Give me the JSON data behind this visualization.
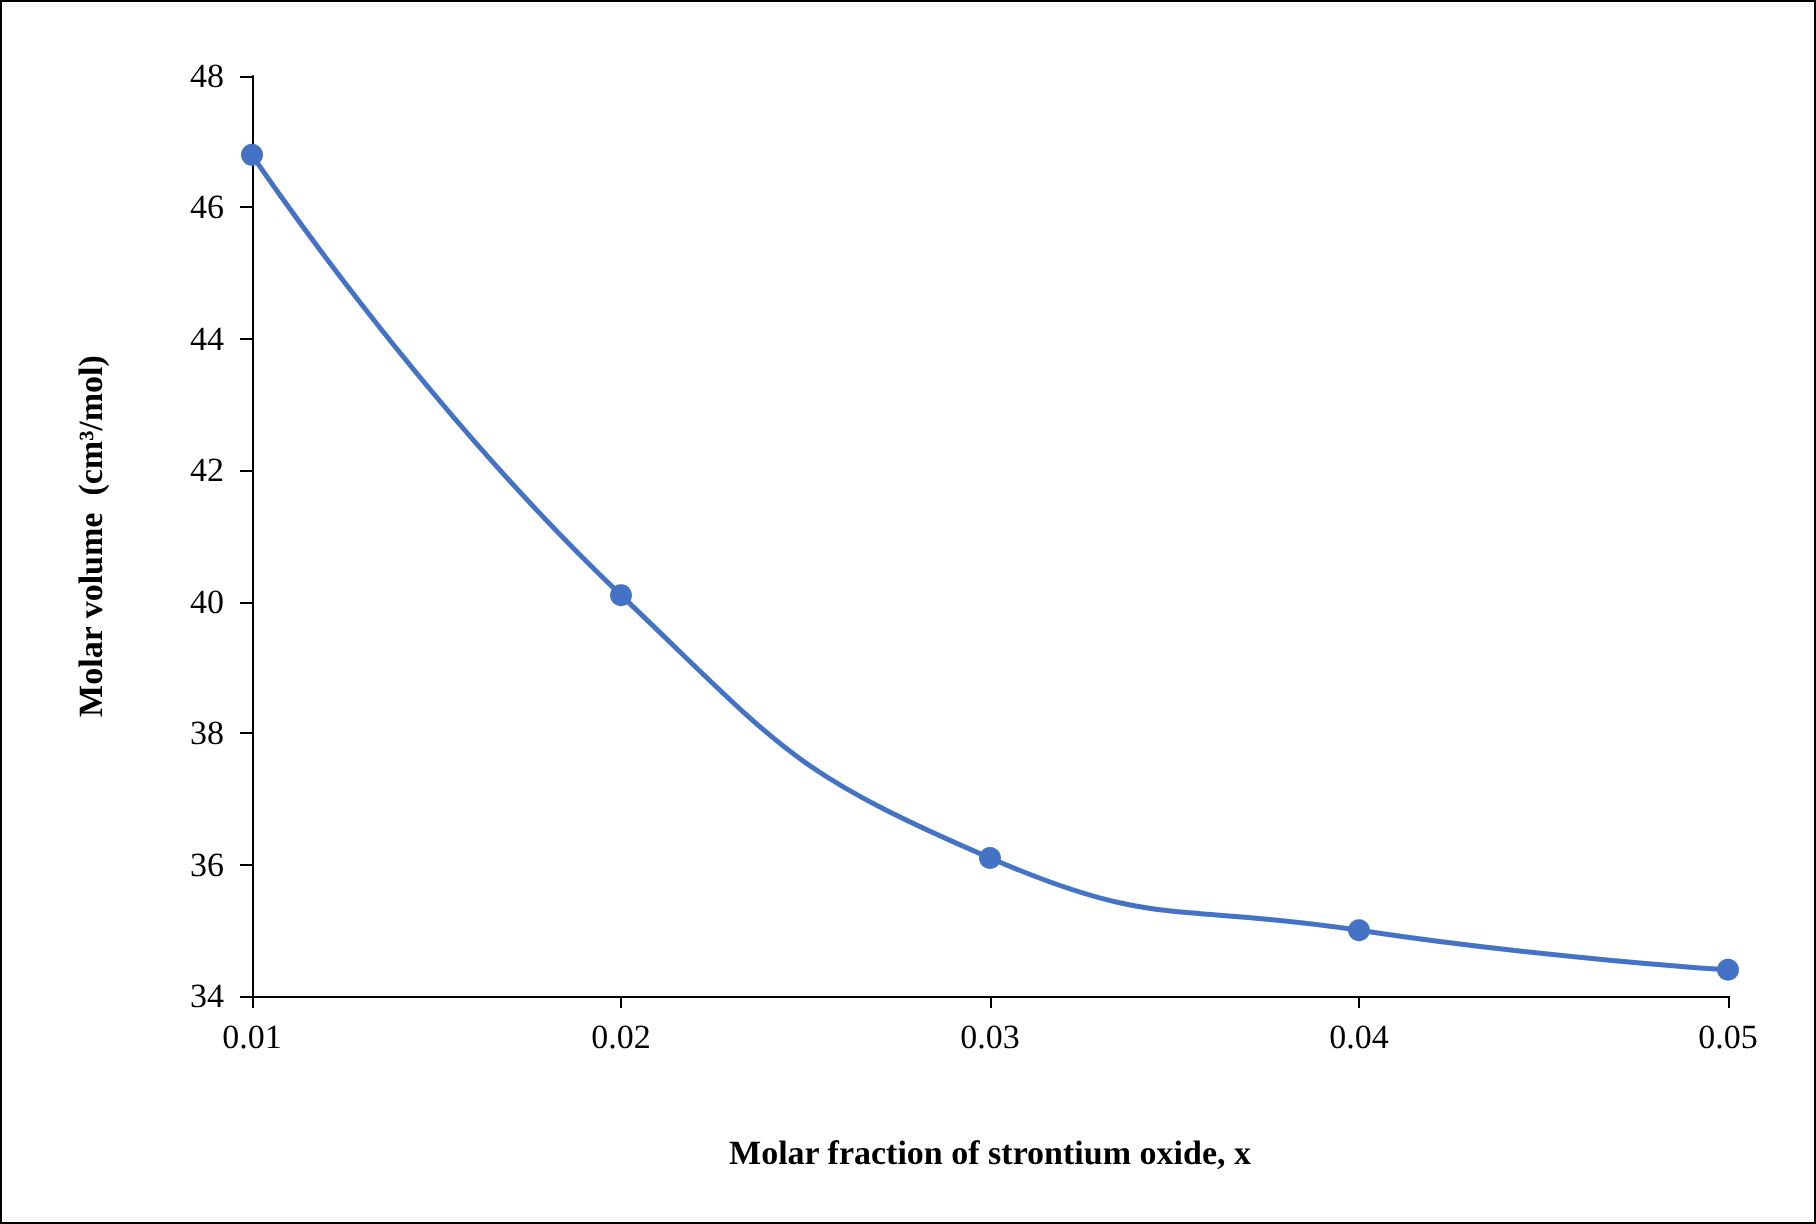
{
  "chart_data": {
    "type": "line",
    "xlabel": "Molar fraction of strontium oxide, x",
    "ylabel": "Molar volume  (cm³/mol)",
    "x": [
      0.01,
      0.02,
      0.03,
      0.04,
      0.05
    ],
    "series": [
      {
        "color": "#4472c4",
        "values": [
          46.8,
          40.1,
          36.1,
          35.0,
          34.4
        ]
      }
    ],
    "xlim": [
      0.01,
      0.05
    ],
    "xticks": [
      0.01,
      0.02,
      0.03,
      0.04,
      0.05
    ],
    "ylim": [
      34,
      48
    ],
    "yticks": [
      34,
      36,
      38,
      40,
      42,
      44,
      46,
      48
    ],
    "grid": false,
    "marker": "circle",
    "line_style": "solid"
  }
}
